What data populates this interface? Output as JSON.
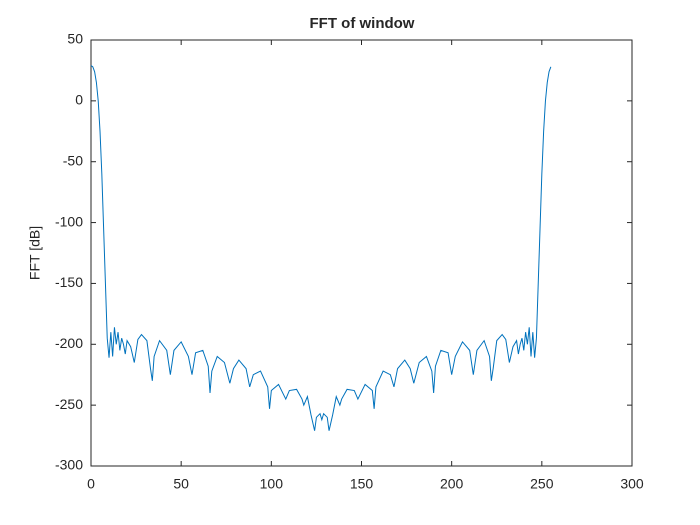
{
  "chart_data": {
    "type": "line",
    "title": "FFT of window",
    "y_label": "FFT [dB]",
    "x": [
      0,
      1,
      2,
      3,
      4,
      5,
      6,
      7,
      8,
      9,
      10,
      11,
      12,
      13,
      14,
      15,
      16,
      17,
      18,
      19,
      20,
      22,
      24,
      26,
      28,
      31,
      33,
      34,
      35,
      38,
      42,
      44,
      46,
      50,
      54,
      56,
      58,
      62,
      65,
      66,
      67,
      70,
      74,
      77,
      79,
      82,
      86,
      88,
      90,
      94,
      98,
      99,
      100,
      104,
      108,
      110,
      114,
      117,
      118,
      120,
      122,
      124,
      125,
      127,
      128,
      129,
      131,
      132,
      134,
      136,
      138,
      139,
      142,
      146,
      148,
      152,
      156,
      157,
      158,
      162,
      166,
      168,
      170,
      174,
      177,
      179,
      182,
      186,
      189,
      190,
      191,
      194,
      198,
      200,
      202,
      206,
      210,
      212,
      214,
      218,
      221,
      222,
      223,
      225,
      228,
      230,
      232,
      234,
      236,
      237,
      238,
      239,
      240,
      241,
      242,
      243,
      244,
      245,
      246,
      247,
      248,
      249,
      250,
      251,
      252,
      253,
      254,
      255
    ],
    "series": [
      {
        "color": "#0072bd",
        "values": [
          29,
          28,
          24,
          15,
          0,
          -25,
          -60,
          -105,
          -150,
          -195,
          -211,
          -190,
          -210,
          -186,
          -200,
          -190,
          -205,
          -195,
          -200,
          -208,
          -197,
          -202,
          -215,
          -196,
          -192,
          -197,
          -220,
          -230,
          -210,
          -197,
          -205,
          -225,
          -205,
          -198,
          -210,
          -225,
          -207,
          -205,
          -218,
          -240,
          -222,
          -210,
          -215,
          -232,
          -220,
          -213,
          -220,
          -235,
          -225,
          -222,
          -235,
          -253,
          -238,
          -233,
          -245,
          -238,
          -237,
          -245,
          -250,
          -243,
          -258,
          -271,
          -260,
          -257,
          -262,
          -257,
          -260,
          -271,
          -258,
          -243,
          -250,
          -245,
          -237,
          -238,
          -245,
          -233,
          -238,
          -253,
          -235,
          -222,
          -225,
          -235,
          -220,
          -213,
          -220,
          -232,
          -215,
          -210,
          -222,
          -240,
          -218,
          -205,
          -207,
          -225,
          -210,
          -198,
          -205,
          -225,
          -205,
          -197,
          -210,
          -230,
          -220,
          -197,
          -192,
          -196,
          -215,
          -202,
          -197,
          -208,
          -200,
          -195,
          -205,
          -190,
          -200,
          -186,
          -210,
          -190,
          -211,
          -195,
          -150,
          -105,
          -60,
          -25,
          0,
          15,
          24,
          28
        ]
      }
    ],
    "xlim": [
      0,
      300
    ],
    "xticks": [
      0,
      50,
      100,
      150,
      200,
      250,
      300
    ],
    "ylim": [
      -300,
      50
    ],
    "yticks": [
      -300,
      -250,
      -200,
      -150,
      -100,
      -50,
      0,
      50
    ]
  }
}
